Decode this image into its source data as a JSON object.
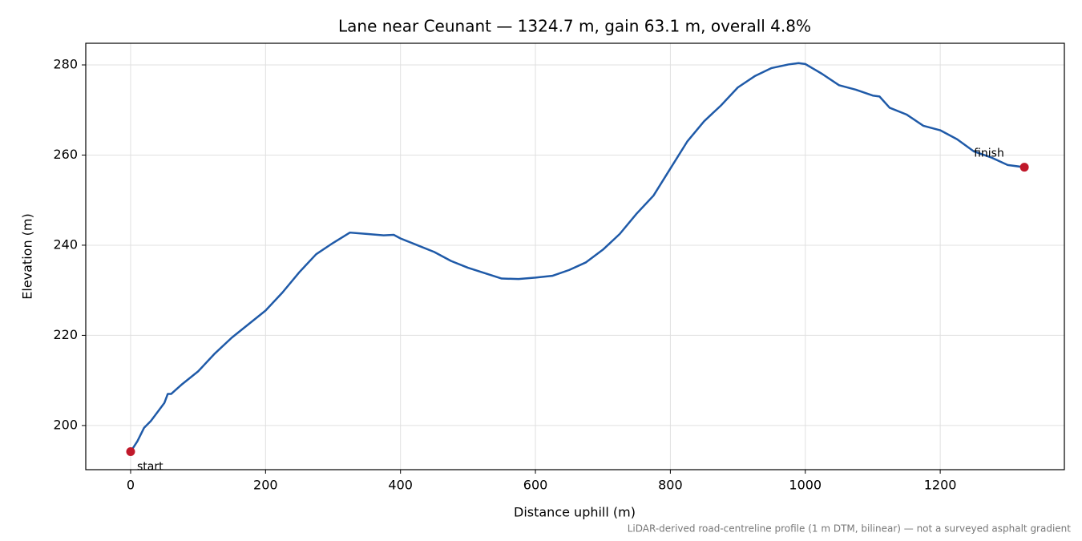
{
  "chart_data": {
    "type": "line",
    "title": "Lane near Ceunant — 1324.7 m, gain 63.1 m, overall 4.8%",
    "xlabel": "Distance uphill (m)",
    "ylabel": "Elevation (m)",
    "footnote": "LiDAR-derived road-centreline profile (1 m DTM, bilinear) — not a surveyed asphalt gradient",
    "x": [
      0,
      10,
      20,
      30,
      50,
      55,
      60,
      75,
      100,
      125,
      150,
      175,
      200,
      225,
      250,
      275,
      300,
      325,
      350,
      375,
      390,
      400,
      425,
      450,
      475,
      500,
      525,
      550,
      575,
      600,
      625,
      650,
      675,
      700,
      725,
      750,
      775,
      800,
      825,
      850,
      875,
      900,
      925,
      950,
      975,
      990,
      1000,
      1025,
      1050,
      1075,
      1100,
      1110,
      1125,
      1150,
      1175,
      1200,
      1225,
      1250,
      1275,
      1300,
      1324.7
    ],
    "series": [
      {
        "color": "#1f5aa8",
        "values": [
          194.2,
          196.5,
          199.5,
          201,
          205,
          207,
          207,
          209,
          212,
          216,
          219.5,
          222.5,
          225.5,
          229.5,
          234,
          238,
          240.5,
          242.8,
          242.5,
          242.2,
          242.3,
          241.5,
          240,
          238.5,
          236.5,
          235,
          233.8,
          232.6,
          232.5,
          232.8,
          233.2,
          234.5,
          236.2,
          239,
          242.5,
          247,
          251,
          257,
          263,
          267.5,
          271,
          275,
          277.5,
          279.3,
          280.1,
          280.4,
          280.2,
          278,
          275.5,
          274.5,
          273.2,
          273,
          270.5,
          269,
          266.5,
          265.5,
          263.5,
          260.8,
          259.5,
          257.8,
          257.3
        ]
      }
    ],
    "points": [
      {
        "label": "start",
        "x": 0,
        "y": 194.2,
        "color": "#c0182a"
      },
      {
        "label": "finish",
        "x": 1324.7,
        "y": 257.3,
        "color": "#c0182a"
      }
    ],
    "xlim": [
      -66.5,
      1384
    ],
    "ylim": [
      190.2,
      284.8
    ],
    "xticks": [
      0,
      200,
      400,
      600,
      800,
      1000,
      1200
    ],
    "yticks": [
      200,
      220,
      240,
      260,
      280
    ],
    "grid": true
  }
}
